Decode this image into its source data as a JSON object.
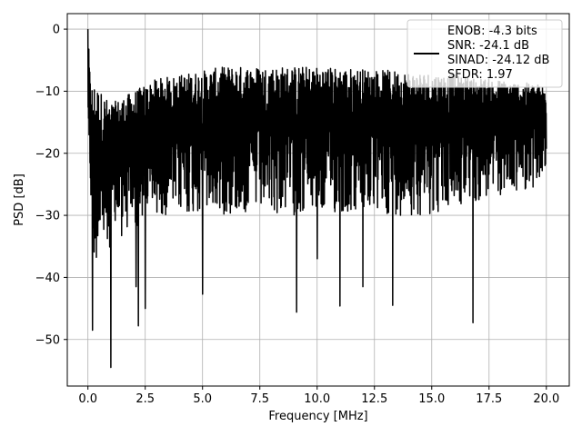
{
  "chart_data": {
    "type": "line",
    "xlabel": "Frequency [MHz]",
    "ylabel": "PSD [dB]",
    "xlim": [
      -0.9,
      21.0
    ],
    "ylim": [
      -57.5,
      2.5
    ],
    "xticks": [
      "0.0",
      "2.5",
      "5.0",
      "7.5",
      "10.0",
      "12.5",
      "15.0",
      "17.5",
      "20.0"
    ],
    "yticks": [
      "0",
      "−10",
      "−20",
      "−30",
      "−40",
      "−50"
    ],
    "grid": true,
    "legend_position": "top-right",
    "legend_entries": [
      "ENOB: -4.3 bits",
      "SNR: -24.1 dB",
      "SINAD: -24.12 dB",
      "SFDR: 1.97"
    ],
    "line_color": "#000000",
    "series": [
      {
        "x_range": [
          0.0,
          20.0
        ],
        "points": 2000,
        "upper_envelope_approx": [
          [
            0.0,
            0
          ],
          [
            0.1,
            -8
          ],
          [
            1.0,
            -12
          ],
          [
            3.0,
            -8
          ],
          [
            6.0,
            -6
          ],
          [
            10.0,
            -6
          ],
          [
            15.0,
            -7
          ],
          [
            20.0,
            -9
          ]
        ],
        "lower_envelope_approx": [
          [
            0.0,
            -16
          ],
          [
            0.2,
            -38
          ],
          [
            1.0,
            -35
          ],
          [
            3.0,
            -30
          ],
          [
            10.0,
            -30
          ],
          [
            15.0,
            -30
          ],
          [
            20.0,
            -25
          ]
        ],
        "deep_nulls": [
          [
            0.2,
            -48.5
          ],
          [
            1.0,
            -54.5
          ],
          [
            2.1,
            -41.5
          ],
          [
            2.2,
            -47.8
          ],
          [
            2.5,
            -45
          ],
          [
            5.0,
            -42.7
          ],
          [
            9.1,
            -45.6
          ],
          [
            10.0,
            -37
          ],
          [
            11.0,
            -44.6
          ],
          [
            12.0,
            -41.5
          ],
          [
            13.3,
            -44.5
          ],
          [
            16.8,
            -47.3
          ]
        ]
      }
    ]
  }
}
